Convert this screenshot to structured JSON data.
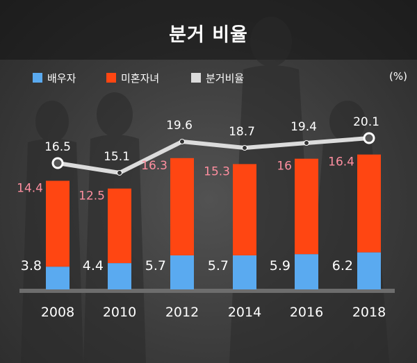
{
  "title": "분거 비율",
  "unit": "(%)",
  "legend": [
    {
      "label": "배우자",
      "color": "#5aaaf0"
    },
    {
      "label": "미혼자녀",
      "color": "#ff4612"
    },
    {
      "label": "분거비율",
      "color": "#dcdcdc"
    }
  ],
  "chart_data": {
    "type": "bar",
    "stacked": true,
    "title": "분거 비율",
    "unit": "(%)",
    "categories": [
      "2008",
      "2010",
      "2012",
      "2014",
      "2016",
      "2018"
    ],
    "series": [
      {
        "name": "배우자",
        "type": "bar",
        "values": [
          3.8,
          4.4,
          5.7,
          5.7,
          5.9,
          6.2
        ],
        "color": "#5aaaf0"
      },
      {
        "name": "미혼자녀",
        "type": "bar",
        "values": [
          14.4,
          12.5,
          16.3,
          15.3,
          16,
          16.4
        ],
        "color": "#ff4612"
      },
      {
        "name": "분거비율",
        "type": "line",
        "values": [
          16.5,
          15.1,
          19.6,
          18.7,
          19.4,
          20.1
        ],
        "color": "#dcdcdc"
      }
    ],
    "label_colors": {
      "spouse": "#ffffff",
      "children": "#ff8fa0",
      "ratio": "#ffffff"
    },
    "legend_position": "top",
    "grid": false
  }
}
